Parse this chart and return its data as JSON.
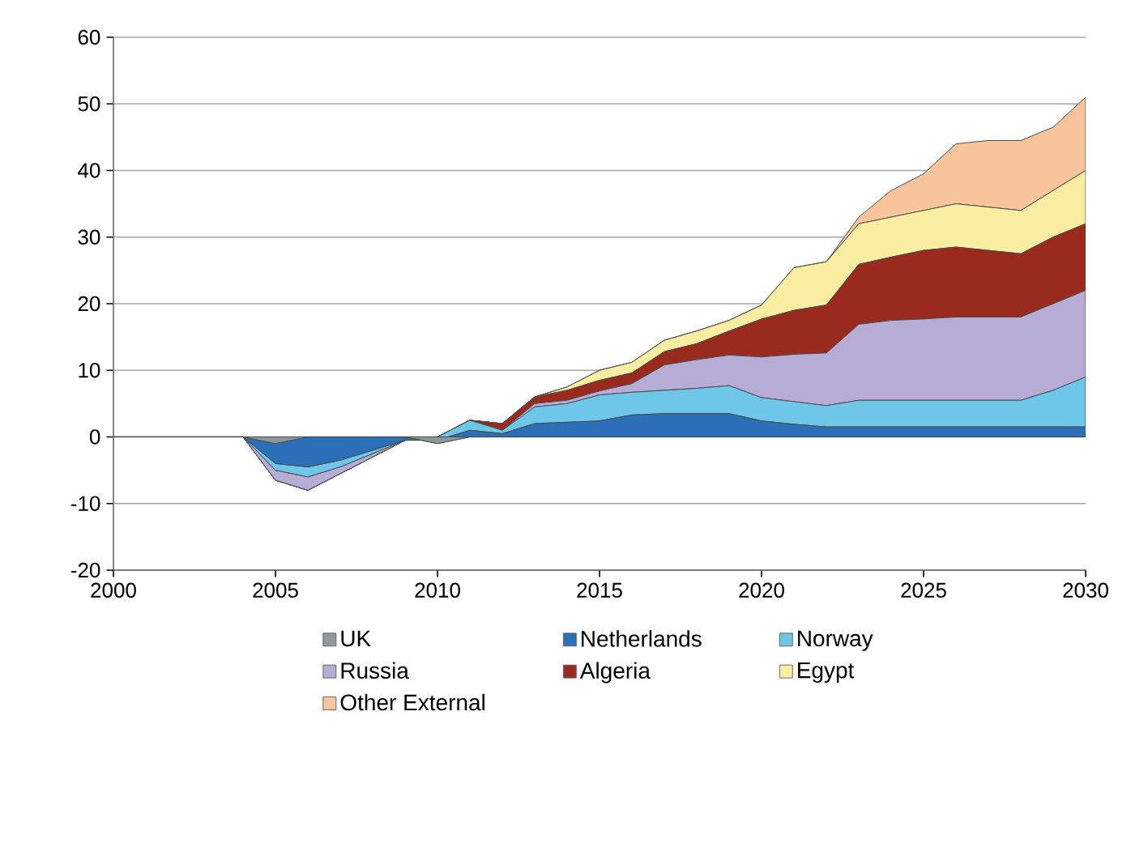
{
  "chart_data": {
    "type": "area",
    "stacked": true,
    "x": [
      2000,
      2001,
      2002,
      2003,
      2004,
      2005,
      2006,
      2007,
      2008,
      2009,
      2010,
      2011,
      2012,
      2013,
      2014,
      2015,
      2016,
      2017,
      2018,
      2019,
      2020,
      2021,
      2022,
      2023,
      2024,
      2025,
      2026,
      2027,
      2028,
      2029,
      2030
    ],
    "series": [
      {
        "name": "UK",
        "color": "#8c9aa0",
        "values": [
          0,
          0,
          0,
          0,
          0,
          -1,
          0,
          0,
          0,
          0,
          -1,
          0,
          0,
          0,
          0,
          0,
          0,
          0,
          0,
          0,
          0,
          0,
          0,
          0,
          0,
          0,
          0,
          0,
          0,
          0,
          0
        ]
      },
      {
        "name": "Netherlands",
        "color": "#2a6fb8",
        "values": [
          0,
          0,
          0,
          0,
          0,
          -3,
          -4.5,
          -3.5,
          -2,
          -0.5,
          0.5,
          1,
          0.5,
          2,
          2.2,
          2.4,
          3.3,
          3.5,
          3.5,
          3.5,
          2.4,
          1.9,
          1.5,
          1.5,
          1.5,
          1.5,
          1.5,
          1.5,
          1.5,
          1.5,
          1.5
        ]
      },
      {
        "name": "Norway",
        "color": "#6ec6e8",
        "values": [
          0,
          0,
          0,
          0,
          0,
          -1,
          -1.5,
          -1,
          -0.5,
          0,
          0.5,
          1.5,
          0.5,
          2.5,
          2.8,
          3.9,
          3.4,
          3.5,
          3.8,
          4.2,
          3.5,
          3.4,
          3.2,
          4,
          4,
          4,
          4,
          4,
          4,
          5.5,
          7.5
        ]
      },
      {
        "name": "Russia",
        "color": "#b7acd6",
        "values": [
          0,
          0,
          0,
          0,
          0,
          -1.5,
          -2,
          -1,
          -0.5,
          0,
          0,
          0,
          0,
          0.5,
          0.5,
          0.6,
          1.3,
          3.8,
          4.3,
          4.6,
          6.1,
          7.1,
          7.9,
          11.4,
          12,
          12.2,
          12.5,
          12.5,
          12.5,
          13,
          13
        ]
      },
      {
        "name": "Algeria",
        "color": "#9b2a1e",
        "values": [
          0,
          0,
          0,
          0,
          0,
          0,
          0,
          0,
          0,
          0,
          0,
          0,
          1,
          1,
          1.5,
          1.6,
          1.6,
          2,
          2.4,
          3.6,
          5.7,
          6.6,
          7.2,
          9,
          9.5,
          10.3,
          10.5,
          10,
          9.5,
          10,
          10
        ]
      },
      {
        "name": "Egypt",
        "color": "#f8eda0",
        "values": [
          0,
          0,
          0,
          0,
          0,
          0,
          0,
          0,
          0,
          0,
          0,
          0,
          0,
          0,
          0.5,
          1.5,
          1.6,
          1.7,
          1.9,
          1.6,
          2.1,
          6.4,
          6.5,
          6.1,
          6,
          6,
          6.5,
          6.5,
          6.5,
          7,
          8
        ]
      },
      {
        "name": "Other External",
        "color": "#f8c49c",
        "values": [
          0,
          0,
          0,
          0,
          0,
          0,
          0,
          0,
          0,
          0,
          0,
          0,
          0,
          0,
          0,
          0,
          0,
          0,
          0,
          0,
          0,
          0,
          0,
          1,
          4,
          5.5,
          9,
          10,
          10.5,
          9.5,
          11
        ]
      }
    ],
    "xlim": [
      2000,
      2030
    ],
    "xticks": [
      2000,
      2005,
      2010,
      2015,
      2020,
      2025,
      2030
    ],
    "ylim": [
      -20,
      60
    ],
    "yticks": [
      -20,
      -10,
      0,
      10,
      20,
      30,
      40,
      50,
      60
    ],
    "grid": "y",
    "legend": "bottom"
  }
}
